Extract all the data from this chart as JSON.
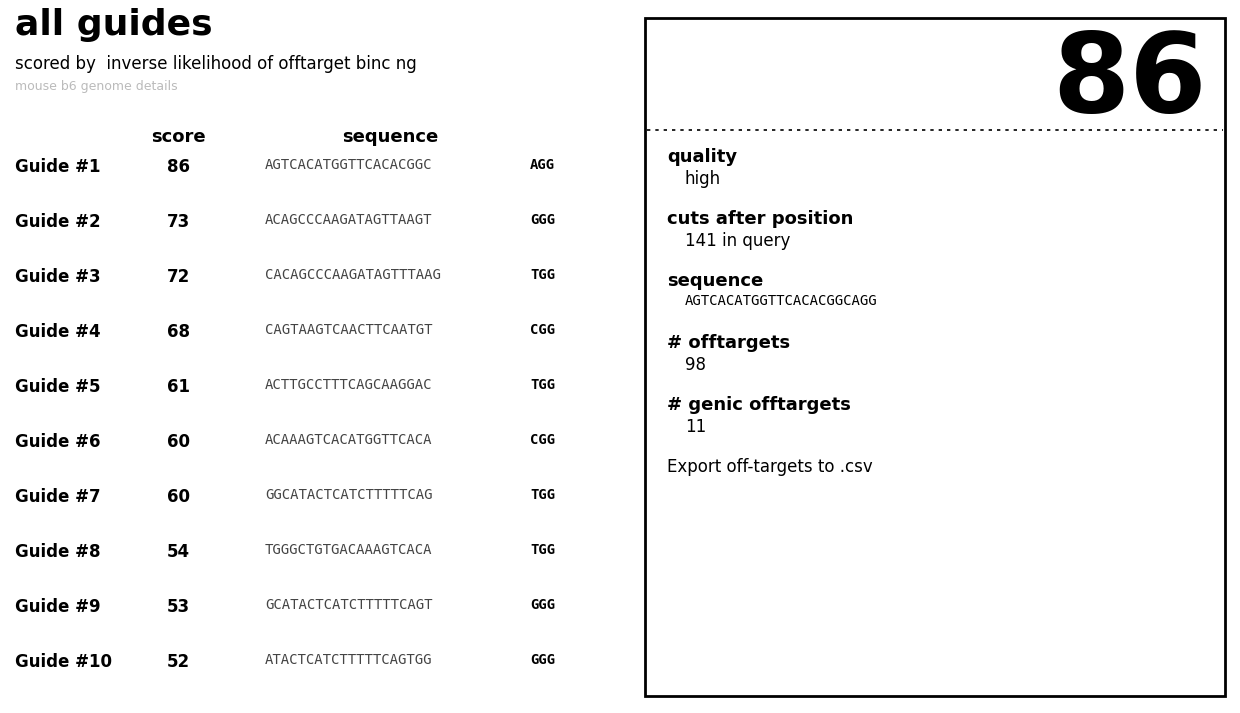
{
  "title": "all guides",
  "subtitle": "scored by  inverse likelihood of offtarget binc ng",
  "subtitle2": "mouse b6 genome details",
  "guides": [
    {
      "name": "Guide #1",
      "score": "86",
      "seq": "AGTCACATGGTTCACACGGC",
      "pam": "AGG"
    },
    {
      "name": "Guide #2",
      "score": "73",
      "seq": "ACAGCCCAAGATAGTTAAGT",
      "pam": "GGG"
    },
    {
      "name": "Guide #3",
      "score": "72",
      "seq": "CACAGCCCAAGATAGTTTAAG",
      "pam": "TGG"
    },
    {
      "name": "Guide #4",
      "score": "68",
      "seq": "CAGTAAGTCAACTTCAATGT",
      "pam": "CGG"
    },
    {
      "name": "Guide #5",
      "score": "61",
      "seq": "ACTTGCCTTTCAGCAAGGAC",
      "pam": "TGG"
    },
    {
      "name": "Guide #6",
      "score": "60",
      "seq": "ACAAAGTCACATGGTTCACA",
      "pam": "CGG"
    },
    {
      "name": "Guide #7",
      "score": "60",
      "seq": "GGCATACTCATCTTTTTCAG",
      "pam": "TGG"
    },
    {
      "name": "Guide #8",
      "score": "54",
      "seq": "TGGGCTGTGACAAAGTCACA",
      "pam": "TGG"
    },
    {
      "name": "Guide #9",
      "score": "53",
      "seq": "GCATACTCATCTTTTTCAGT",
      "pam": "GGG"
    },
    {
      "name": "Guide #10",
      "score": "52",
      "seq": "ATACTCATCTTTTTCAGTGG",
      "pam": "GGG"
    }
  ],
  "panel_score": "86",
  "panel_quality_label": "quality",
  "panel_quality_value": "high",
  "panel_cuts_label": "cuts after position",
  "panel_cuts_value": "141 in query",
  "panel_seq_label": "sequence",
  "panel_seq_value": "AGTCACATGGTTCACACGGCAGG",
  "panel_offtargets_label": "# offtargets",
  "panel_offtargets_value": "98",
  "panel_genic_label": "# genic offtargets",
  "panel_genic_value": "11",
  "panel_export": "Export off-targets to .csv",
  "bg_color": "#ffffff",
  "text_color": "#000000",
  "mono_color": "#444444"
}
